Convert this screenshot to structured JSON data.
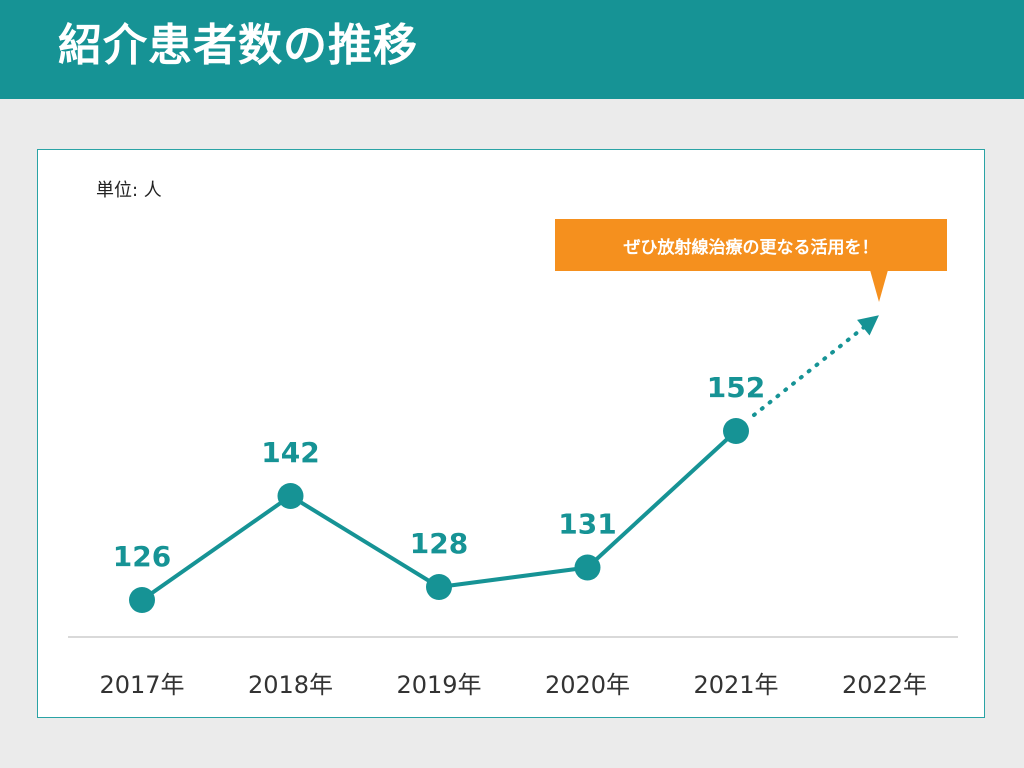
{
  "header": {
    "title": "紹介患者数の推移"
  },
  "unit_label": "単位: 人",
  "callout": {
    "text": "ぜひ放射線治療の更なる活用を！"
  },
  "colors": {
    "accent": "#169395",
    "callout": "#f5901e",
    "background": "#ebebeb",
    "axis": "#d9d9d9"
  },
  "chart_data": {
    "type": "line",
    "categories": [
      "2017年",
      "2018年",
      "2019年",
      "2020年",
      "2021年",
      "2022年"
    ],
    "values": [
      126,
      142,
      128,
      131,
      152,
      null
    ],
    "unit": "人",
    "projection": {
      "from": "2021年",
      "style": "dotted-arrow",
      "direction": "up"
    },
    "grid": false
  }
}
